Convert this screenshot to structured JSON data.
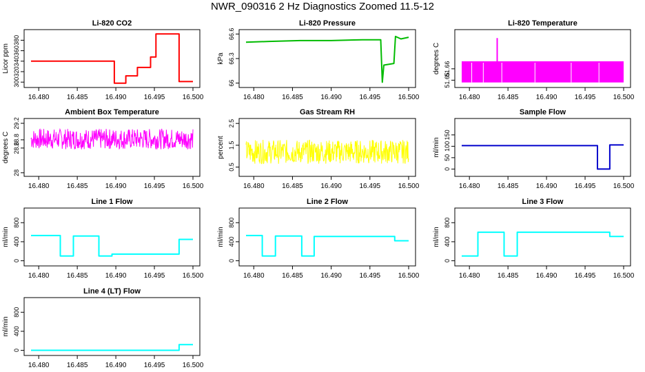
{
  "figure": {
    "title": "NWR_090316  2 Hz Diagnostics Zoomed 11.5-12"
  },
  "chart_data": [
    {
      "type": "line",
      "title": "Li-820 CO2",
      "xlabel": "",
      "ylabel": "Licor ppm",
      "color": "#ff0000",
      "xlim": [
        16.479,
        16.5
      ],
      "ylim": [
        295,
        395
      ],
      "yticks": [
        300,
        320,
        340,
        360,
        380
      ],
      "x": [
        16.479,
        16.4898,
        16.4898,
        16.4913,
        16.4913,
        16.4928,
        16.4928,
        16.4945,
        16.4945,
        16.4952,
        16.4952,
        16.4982,
        16.4982,
        16.5
      ],
      "y": [
        340,
        340,
        298,
        298,
        312,
        312,
        328,
        328,
        348,
        348,
        392,
        392,
        301,
        301
      ]
    },
    {
      "type": "line",
      "title": "Li-820 Pressure",
      "xlabel": "",
      "ylabel": "kPa",
      "color": "#00bb00",
      "xlim": [
        16.479,
        16.5
      ],
      "ylim": [
        65.98,
        66.62
      ],
      "yticks": [
        66.0,
        66.3,
        66.6
      ],
      "x": [
        16.479,
        16.482,
        16.486,
        16.49,
        16.494,
        16.4964,
        16.4966,
        16.4968,
        16.4981,
        16.4983,
        16.499,
        16.5
      ],
      "y": [
        66.5,
        66.51,
        66.52,
        66.52,
        66.53,
        66.53,
        66.01,
        66.22,
        66.24,
        66.57,
        66.54,
        66.56
      ]
    },
    {
      "type": "line",
      "title": "Li-820 Temperature",
      "xlabel": "",
      "ylabel": "degrees C",
      "color": "#ff00ff",
      "xlim": [
        16.479,
        16.5
      ],
      "ylim": [
        51.646,
        51.692
      ],
      "yticks": [
        51.65,
        51.66
      ],
      "x": [
        16.479,
        16.4836,
        16.4836,
        16.4836,
        16.5
      ],
      "y": [
        51.666,
        51.666,
        51.687,
        51.666,
        51.666
      ]
    },
    {
      "type": "line",
      "title": "Ambient Box Temperature",
      "xlabel": "",
      "ylabel": "degrees C",
      "color": "#ff00ff",
      "xlim": [
        16.479,
        16.5
      ],
      "ylim": [
        27.98,
        29.25
      ],
      "yticks": [
        28.0,
        28.6,
        28.8,
        29.2
      ],
      "x": [
        16.479,
        16.5
      ],
      "y": [
        28.82,
        28.82
      ]
    },
    {
      "type": "line",
      "title": "Gas Stream RH",
      "xlabel": "",
      "ylabel": "percent",
      "color": "#ffff00",
      "xlim": [
        16.479,
        16.5
      ],
      "ylim": [
        0.2,
        2.6
      ],
      "yticks": [
        0.5,
        1.5,
        2.5
      ],
      "x": [
        16.479,
        16.5
      ],
      "y": [
        1.2,
        1.2
      ]
    },
    {
      "type": "line",
      "title": "Sample Flow",
      "xlabel": "",
      "ylabel": "ml/min",
      "color": "#0000cc",
      "xlim": [
        16.479,
        16.5
      ],
      "ylim": [
        -20,
        210
      ],
      "yticks": [
        0,
        50,
        100,
        150
      ],
      "x": [
        16.479,
        16.4966,
        16.4966,
        16.4982,
        16.4982,
        16.5
      ],
      "y": [
        103,
        103,
        0,
        0,
        106,
        106
      ]
    },
    {
      "type": "line",
      "title": "Line 1 Flow",
      "xlabel": "",
      "ylabel": "ml/min",
      "color": "#00ffff",
      "xlim": [
        16.479,
        16.5
      ],
      "ylim": [
        -50,
        1050
      ],
      "yticks": [
        0,
        400,
        800
      ],
      "x": [
        16.479,
        16.4828,
        16.4828,
        16.4845,
        16.4845,
        16.4878,
        16.4878,
        16.4895,
        16.4895,
        16.4982,
        16.4982,
        16.5
      ],
      "y": [
        530,
        530,
        100,
        100,
        520,
        520,
        100,
        100,
        140,
        140,
        450,
        450
      ]
    },
    {
      "type": "line",
      "title": "Line 2 Flow",
      "xlabel": "",
      "ylabel": "ml/min",
      "color": "#00ffff",
      "xlim": [
        16.479,
        16.5
      ],
      "ylim": [
        -50,
        1050
      ],
      "yticks": [
        0,
        400,
        800
      ],
      "x": [
        16.479,
        16.4811,
        16.4811,
        16.4828,
        16.4828,
        16.4862,
        16.4862,
        16.4878,
        16.4878,
        16.4982,
        16.4982,
        16.5
      ],
      "y": [
        530,
        530,
        100,
        100,
        520,
        520,
        100,
        100,
        510,
        510,
        420,
        420
      ]
    },
    {
      "type": "line",
      "title": "Line 3 Flow",
      "xlabel": "",
      "ylabel": "ml/min",
      "color": "#00ffff",
      "xlim": [
        16.479,
        16.5
      ],
      "ylim": [
        -50,
        1050
      ],
      "yticks": [
        0,
        400,
        800
      ],
      "x": [
        16.479,
        16.4811,
        16.4811,
        16.4845,
        16.4845,
        16.4862,
        16.4862,
        16.4982,
        16.4982,
        16.5
      ],
      "y": [
        100,
        100,
        600,
        600,
        100,
        100,
        600,
        600,
        510,
        510
      ]
    },
    {
      "type": "line",
      "title": "Line 4 (LT) Flow",
      "xlabel": "",
      "ylabel": "ml/min",
      "color": "#00ffff",
      "xlim": [
        16.479,
        16.5
      ],
      "ylim": [
        -50,
        1050
      ],
      "yticks": [
        0,
        400,
        800
      ],
      "x": [
        16.479,
        16.4982,
        16.4982,
        16.5
      ],
      "y": [
        0,
        0,
        120,
        120
      ]
    }
  ],
  "xticks": [
    "16.480",
    "16.485",
    "16.490",
    "16.495",
    "16.500"
  ],
  "xtick_values": [
    16.48,
    16.485,
    16.49,
    16.495,
    16.5
  ]
}
